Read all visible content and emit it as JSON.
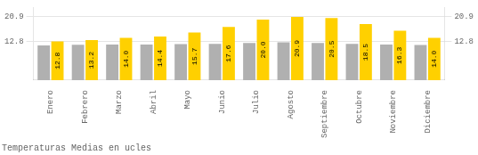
{
  "chart_data": {
    "type": "bar",
    "title": "Temperaturas Medias en ucles",
    "categories": [
      "Enero",
      "Febrero",
      "Marzo",
      "Abril",
      "Mayo",
      "Junio",
      "Julio",
      "Agosto",
      "Septiembre",
      "Octubre",
      "Noviembre",
      "Diciembre"
    ],
    "series": [
      {
        "color": "#B0B0B0",
        "values": [
          11.5,
          11.7,
          11.8,
          11.8,
          11.9,
          12.0,
          12.3,
          12.5,
          12.3,
          12.0,
          11.8,
          11.6
        ]
      },
      {
        "color": "#FFD000",
        "values": [
          12.8,
          13.2,
          14.0,
          14.4,
          15.7,
          17.6,
          20.0,
          20.9,
          20.5,
          18.5,
          16.3,
          14.0
        ],
        "data_labels": true,
        "value_labels": [
          "12.8",
          "13.2",
          "14.0",
          "14.4",
          "15.7",
          "17.6",
          "20.0",
          "20.9",
          "20.5",
          "18.5",
          "16.3",
          "14.0"
        ]
      }
    ],
    "ylim": [
      0,
      24
    ],
    "yticks": [
      12.8,
      20.9
    ],
    "y2lim": [
      0,
      24
    ],
    "y2ticks": [
      12.8,
      20.9
    ],
    "grid": true
  }
}
